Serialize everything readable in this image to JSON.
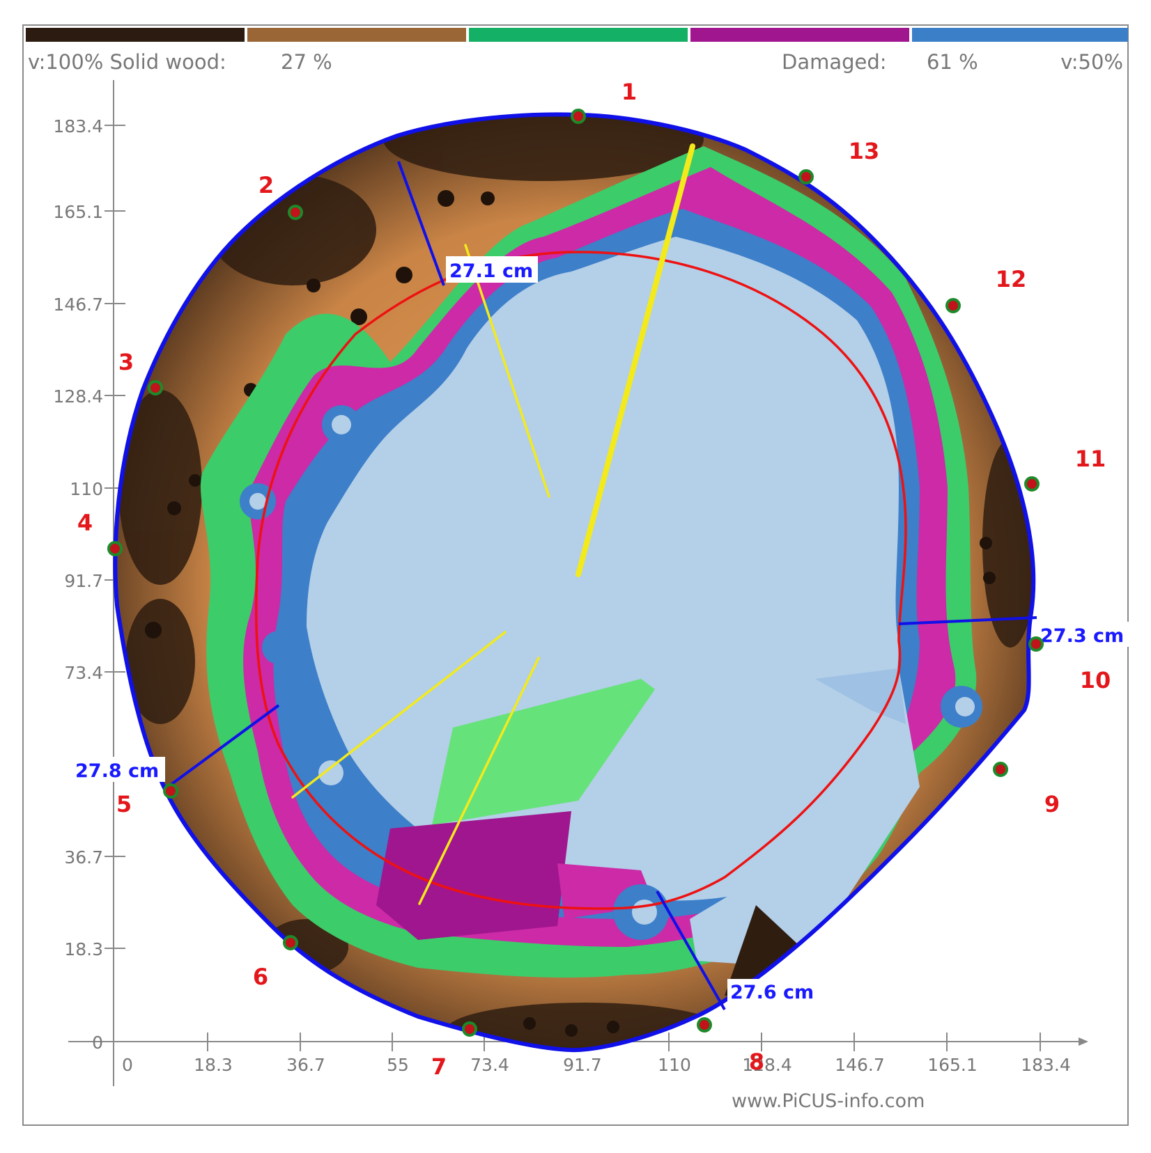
{
  "legend": {
    "colors": [
      "#2b1b10",
      "#9a6636",
      "#13b065",
      "#a0168e",
      "#3a7fc8"
    ],
    "left_text": "v:100% Solid wood:",
    "solid_value": "27 %",
    "damaged_label": "Damaged:",
    "damaged_value": "61 %",
    "right_text": "v:50%"
  },
  "axes": {
    "y_ticks": [
      "183.4",
      "165.1",
      "146.7",
      "128.4",
      "110",
      "91.7",
      "73.4",
      "36.7",
      "18.3",
      "0"
    ],
    "x_ticks": [
      "0",
      "18.3",
      "36.7",
      "55",
      "73.4",
      "91.7",
      "110",
      "128.4",
      "146.7",
      "165.1",
      "183.4"
    ]
  },
  "sensors": [
    "1",
    "2",
    "3",
    "4",
    "5",
    "6",
    "7",
    "8",
    "9",
    "10",
    "11",
    "12",
    "13"
  ],
  "measurements": [
    "27.1 cm",
    "27.3 cm",
    "27.8 cm",
    "27.6 cm"
  ],
  "watermark": "www.PiCUS-info.com",
  "colors": {
    "outline": "#1010e8",
    "sensor_dot": "#c0131a",
    "sensor_ring": "#1d8a2a",
    "ellipse": "#ee1111",
    "yellow": "#f3ea1c",
    "healthy_light": "#b4cfe8",
    "dark_brown": "#2f1d10",
    "tan": "#e8a25a",
    "green": "#3ccc6a",
    "light_green": "#66e27a",
    "magenta": "#cc2aa6",
    "blue": "#3d7fc9"
  }
}
